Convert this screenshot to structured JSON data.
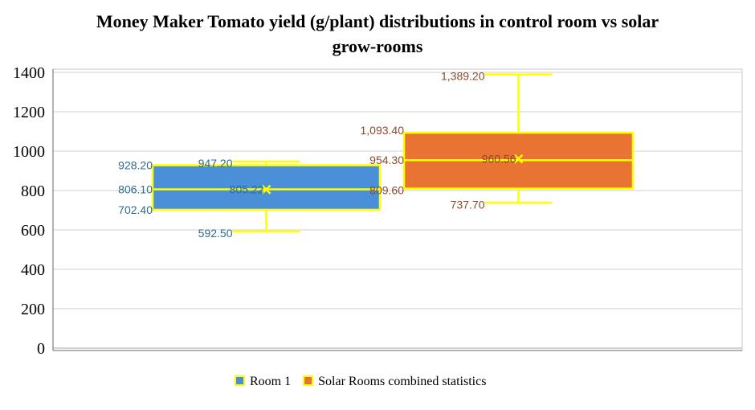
{
  "chart_data": {
    "type": "box",
    "title": "Money Maker Tomato yield (g/plant) distributions in control room vs solar grow-rooms",
    "title_lines": [
      "Money Maker Tomato yield (g/plant) distributions in control room vs solar",
      "grow-rooms"
    ],
    "xlabel": "",
    "ylabel": "",
    "ylim": [
      0,
      1400
    ],
    "yticks": [
      0,
      200,
      400,
      600,
      800,
      1000,
      1200,
      1400
    ],
    "grid": true,
    "legend_position": "bottom",
    "series": [
      {
        "name": "Room 1",
        "color": "#4A90D9",
        "label_color": "#2E6B8F",
        "min": 592.5,
        "q1": 702.4,
        "median": 806.1,
        "q3": 928.2,
        "max": 947.2,
        "mean": 805.22,
        "labels": {
          "min": "592.50",
          "q1": "702.40",
          "median": "806.10",
          "q3": "928.20",
          "max": "947.20",
          "mean": "805.22"
        }
      },
      {
        "name": "Solar Rooms combined statistics",
        "color": "#E87333",
        "label_color": "#8B4A2A",
        "min": 737.7,
        "q1": 809.6,
        "median": 954.3,
        "q3": 1093.4,
        "max": 1389.2,
        "mean": 960.56,
        "labels": {
          "min": "737.70",
          "q1": "809.60",
          "median": "954.30",
          "q3": "1,093.40",
          "max": "1,389.20",
          "mean": "960.56"
        }
      }
    ],
    "outline_color": "#FFFF00"
  }
}
